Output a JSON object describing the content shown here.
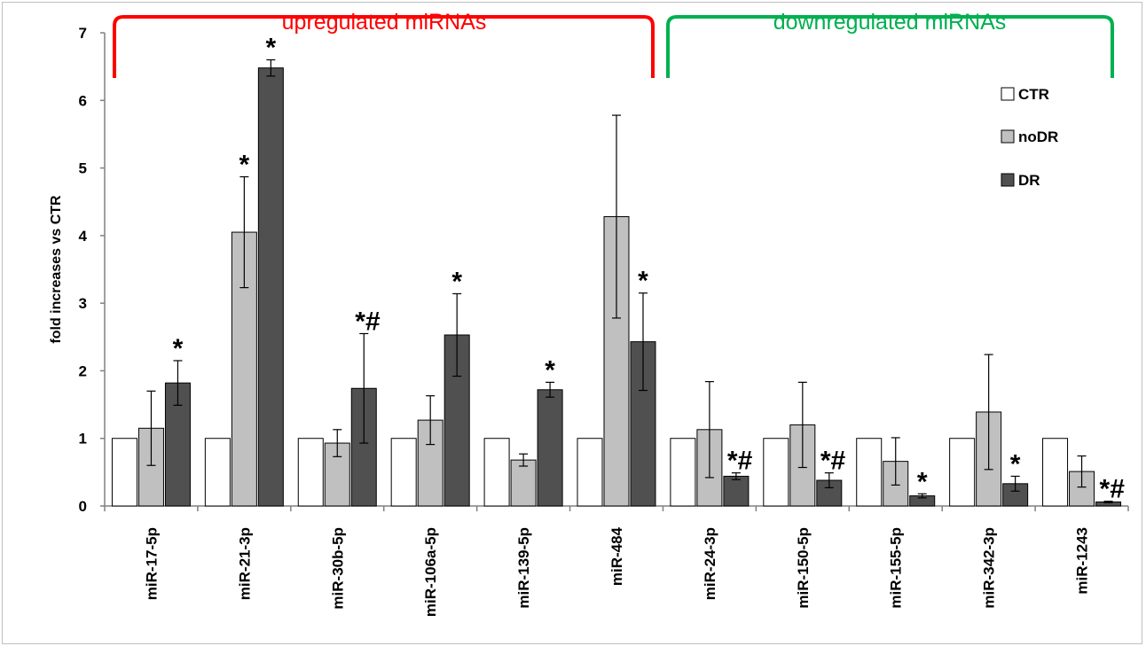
{
  "chart_data": {
    "type": "bar",
    "ylabel": "fold increases vs CTR",
    "ylim": [
      0,
      7
    ],
    "yticks": [
      "0",
      "1",
      "2",
      "3",
      "4",
      "5",
      "6",
      "7"
    ],
    "categories": [
      "miR-17-5p",
      "miR-21-3p",
      "miR-30b-5p",
      "miR-106a-5p",
      "miR-139-5p",
      "miR-484",
      "miR-24-3p",
      "miR-150-5p",
      "miR-155-5p",
      "miR-342-3p",
      "miR-1243"
    ],
    "series": [
      {
        "name": "CTR",
        "color": "#ffffff",
        "values": [
          1,
          1,
          1,
          1,
          1,
          1,
          1,
          1,
          1,
          1,
          1
        ],
        "errors": [
          0,
          0,
          0,
          0,
          0,
          0,
          0,
          0,
          0,
          0,
          0
        ]
      },
      {
        "name": "noDR",
        "color": "#c0c0c0",
        "values": [
          1.15,
          4.05,
          0.93,
          1.27,
          0.68,
          4.28,
          1.13,
          1.2,
          0.66,
          1.39,
          0.51
        ],
        "errors": [
          0.55,
          0.82,
          0.2,
          0.36,
          0.09,
          1.5,
          0.71,
          0.63,
          0.35,
          0.85,
          0.23
        ]
      },
      {
        "name": "DR",
        "color": "#505050",
        "values": [
          1.82,
          6.48,
          1.74,
          2.53,
          1.72,
          2.43,
          0.44,
          0.38,
          0.15,
          0.33,
          0.06
        ],
        "errors": [
          0.33,
          0.12,
          0.81,
          0.61,
          0.11,
          0.72,
          0.05,
          0.11,
          0.03,
          0.11,
          0.01
        ]
      }
    ],
    "annotations": [
      "*",
      "*",
      "*",
      "*#",
      "*",
      "*",
      "*",
      "*#",
      "*#",
      "*",
      "*",
      "*#"
    ],
    "groups": [
      {
        "label": "upregulated miRNAs",
        "color": "#ff0000"
      },
      {
        "label": "downregulated miRNAs",
        "color": "#00b050"
      }
    ],
    "legend": [
      "CTR",
      "noDR",
      "DR"
    ],
    "legend_position": "top-right",
    "grid": false
  }
}
